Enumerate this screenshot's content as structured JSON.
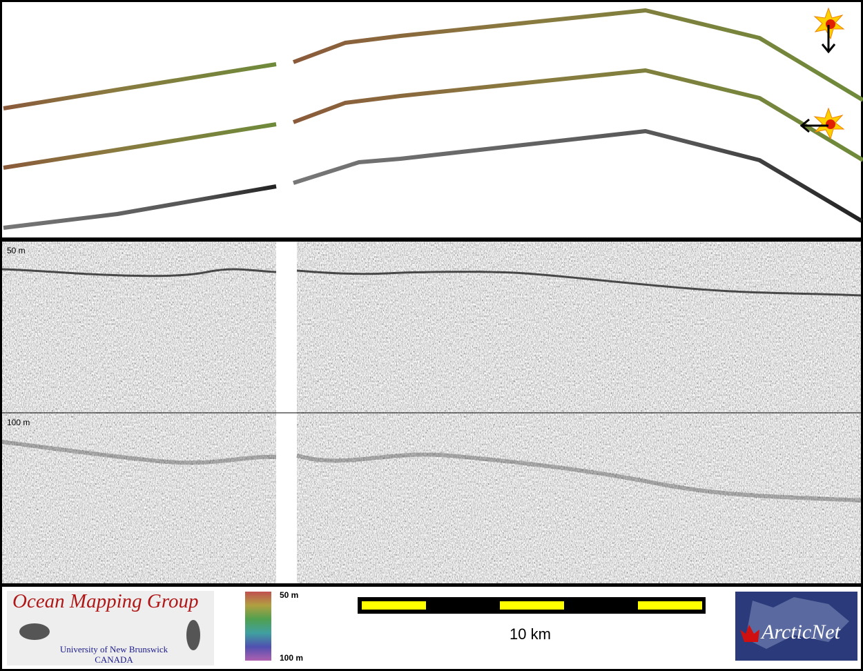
{
  "profile_panel": {
    "depth_labels": [
      "50 m",
      "100 m"
    ]
  },
  "legend": {
    "colorbar_labels": [
      "50 m",
      "100 m"
    ],
    "scale_bar": "10 km"
  },
  "logos": {
    "omg": {
      "title": "Ocean Mapping Group",
      "subtitle": "University of New Brunswick",
      "country": "CANADA"
    },
    "arcticnet": "ArcticNet"
  }
}
